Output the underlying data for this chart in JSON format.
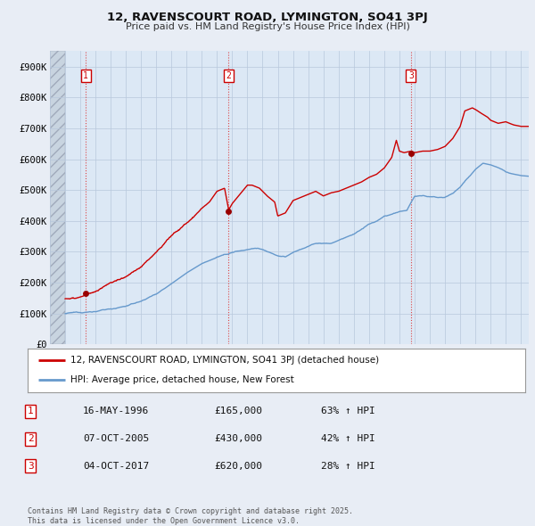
{
  "title1": "12, RAVENSCOURT ROAD, LYMINGTON, SO41 3PJ",
  "title2": "Price paid vs. HM Land Registry's House Price Index (HPI)",
  "bg_color": "#e8edf5",
  "plot_bg_color": "#dce8f5",
  "hatch_bg_color": "#c8d4e8",
  "grid_color": "#c0ccdd",
  "red_line_color": "#cc0000",
  "blue_line_color": "#6699cc",
  "sale_dot_color": "#990000",
  "sale_marker_size": 5,
  "ylim": [
    0,
    950000
  ],
  "yticks": [
    0,
    100000,
    200000,
    300000,
    400000,
    500000,
    600000,
    700000,
    800000,
    900000
  ],
  "ytick_labels": [
    "£0",
    "£100K",
    "£200K",
    "£300K",
    "£400K",
    "£500K",
    "£600K",
    "£700K",
    "£800K",
    "£900K"
  ],
  "legend_label_red": "12, RAVENSCOURT ROAD, LYMINGTON, SO41 3PJ (detached house)",
  "legend_label_blue": "HPI: Average price, detached house, New Forest",
  "sale1_date": "16-MAY-1996",
  "sale1_price": "£165,000",
  "sale1_hpi": "63% ↑ HPI",
  "sale1_num": "1",
  "sale2_date": "07-OCT-2005",
  "sale2_price": "£430,000",
  "sale2_hpi": "42% ↑ HPI",
  "sale2_num": "2",
  "sale3_date": "04-OCT-2017",
  "sale3_price": "£620,000",
  "sale3_hpi": "28% ↑ HPI",
  "sale3_num": "3",
  "footer": "Contains HM Land Registry data © Crown copyright and database right 2025.\nThis data is licensed under the Open Government Licence v3.0.",
  "sale1_year": 1996.37,
  "sale2_year": 2005.77,
  "sale3_year": 2017.76,
  "sale1_price_val": 165000,
  "sale2_price_val": 430000,
  "sale3_price_val": 620000,
  "xmin": 1994.0,
  "xmax": 2025.5,
  "data_start": 1995.0
}
